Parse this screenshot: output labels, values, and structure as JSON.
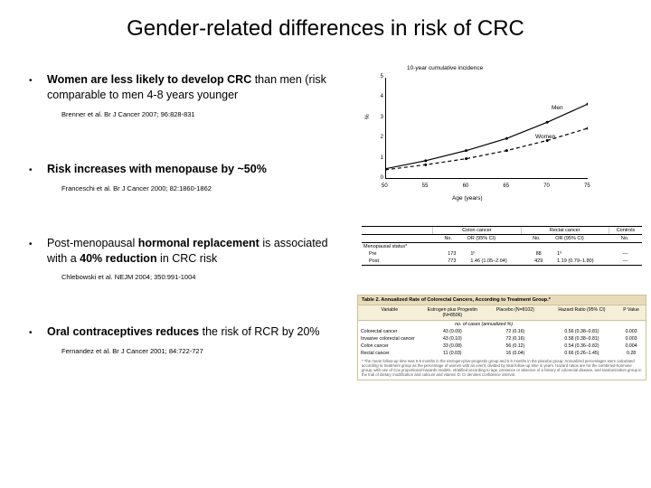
{
  "title": "Gender-related differences in risk of CRC",
  "bullets": [
    {
      "text_pre": "Women are less likely to develop CRC",
      "text_post": " than men (risk comparable to men 4-8 years younger",
      "citation": "Brenner et al. Br J Cancer 2007; 96:828-831"
    },
    {
      "text_pre": "Risk increases with menopause by ~50%",
      "text_post": "",
      "citation": "Franceschi et al. Br J Cancer 2000; 82:1860-1862"
    },
    {
      "text_pre": "",
      "text_mid1": "Post-menopausal ",
      "text_bold1": "hormonal replacement",
      "text_mid2": " is associated with a ",
      "text_bold2": "40% reduction",
      "text_post": " in CRC risk",
      "citation": "Chlebowski et al. NEJM 2004; 350:991-1004"
    },
    {
      "text_pre": "Oral contraceptives reduces",
      "text_post": " the risk of RCR by 20%",
      "citation": "Fernandez et al. Br J Cancer 2001; 84:722-727"
    }
  ],
  "chart1": {
    "title": "10-year cumulative incidence",
    "ylabel": "%",
    "xlabel": "Age (years)",
    "yticks": [
      "0",
      "1",
      "2",
      "3",
      "4",
      "5"
    ],
    "xticks": [
      "50",
      "55",
      "60",
      "65",
      "70",
      "75"
    ],
    "series": [
      {
        "label": "Men",
        "color": "#000000",
        "dash": "",
        "y": [
          0.5,
          0.9,
          1.4,
          2.0,
          2.8,
          3.7
        ]
      },
      {
        "label": "Women",
        "color": "#000000",
        "dash": "4 3",
        "y": [
          0.45,
          0.7,
          1.0,
          1.4,
          1.9,
          2.5
        ]
      }
    ],
    "ylim": [
      0,
      5
    ]
  },
  "table1": {
    "groups": [
      "Colon cancer",
      "Rectal cancer",
      "Controls"
    ],
    "subheaders": [
      "No.",
      "OR (95% CI)",
      "No.",
      "OR (95% CI)",
      "No."
    ],
    "row_label": "Menopausal status*",
    "rows": [
      {
        "label": "Pre",
        "cells": [
          "173",
          "1ᵇ",
          "88",
          "1ᵇ",
          "—"
        ]
      },
      {
        "label": "Post",
        "cells": [
          "773",
          "1.46 (1.05–2.04)",
          "429",
          "1.19 (0.79–1.80)",
          "—"
        ]
      }
    ]
  },
  "table2": {
    "title": "Table 2. Annualized Rate of Colorectal Cancers, According to Treatment Group.*",
    "headers": [
      "Variable",
      "Estrogen plus Progestin (N=8506)",
      "Placebo (N=8102)",
      "Hazard Ratio (95% CI)",
      "P Value"
    ],
    "subheader_note": "no. of cases (annualized %)",
    "rows": [
      [
        "Colorectal cancer",
        "43 (0.09)",
        "72 (0.16)",
        "0.56 (0.38–0.81)",
        "0.003"
      ],
      [
        "Invasive colorectal cancer",
        "43 (0.10)",
        "72 (0.16)",
        "0.58 (0.38–0.81)",
        "0.003"
      ],
      [
        "Colon cancer",
        "33 (0.08)",
        "56 (0.12)",
        "0.54 (0.36–0.82)",
        "0.004"
      ],
      [
        "Rectal cancer",
        "11 (0.03)",
        "16 (0.04)",
        "0.66 (0.26–1.45)",
        "0.28"
      ]
    ],
    "footnote": "* The mean follow-up time was 6.8 months in the estrogen-plus-progestin group and 5.6 months in the placebo group. Annualized percentages were calculated according to treatment group as the percentage of women with an event, divided by total follow-up time in years. Hazard ratios are for the combined-hormone group, with use of Cox proportional-hazards models, stratified according to age, presence or absence of a history of colorectal disease, and randomization group in the trial of dietary modification and calcium and vitamin D. CI denotes confidence interval."
  }
}
